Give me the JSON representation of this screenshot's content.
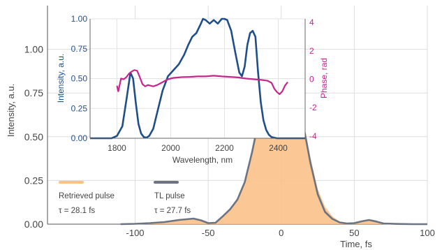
{
  "chart_data": [
    {
      "type": "area",
      "role": "main",
      "xlabel": "Time, fs",
      "ylabel": "Intensity, a.u.",
      "xlim": [
        -160,
        100
      ],
      "ylim": [
        0,
        1.25
      ],
      "xticks": [
        -100,
        -50,
        0,
        50,
        100
      ],
      "yticks": [
        0.0,
        0.25,
        0.5,
        0.75,
        1.0
      ],
      "ytick_labels": [
        "0.00",
        "0.25",
        "0.50",
        "0.75",
        "1.00"
      ],
      "grid": true,
      "legend_position": "bottom-left",
      "colors": {
        "retrieved": "#fbc188",
        "tl": "#6d7481",
        "axis": "#555555",
        "grid": "#dddddd"
      },
      "series": [
        {
          "name": "Retrieved pulse",
          "annotation": "τ = 28.1 fs",
          "style": "filled",
          "x": [
            -110,
            -100,
            -90,
            -80,
            -70,
            -60,
            -55,
            -50,
            -45,
            -40,
            -35,
            -30,
            -25,
            -20,
            -15,
            -10,
            -5,
            0,
            5,
            10,
            15,
            20,
            25,
            30,
            35,
            40,
            45,
            50,
            55,
            60,
            65,
            70,
            80,
            90,
            100
          ],
          "y": [
            0.0,
            0.003,
            0.008,
            0.015,
            0.028,
            0.035,
            0.025,
            0.008,
            0.01,
            0.05,
            0.09,
            0.15,
            0.25,
            0.42,
            0.62,
            0.82,
            0.96,
            1.0,
            0.96,
            0.82,
            0.6,
            0.38,
            0.2,
            0.1,
            0.045,
            0.015,
            0.005,
            0.006,
            0.018,
            0.028,
            0.018,
            0.006,
            0.002,
            0.0,
            0.0
          ]
        },
        {
          "name": "TL pulse",
          "annotation": "τ = 27.7 fs",
          "style": "line",
          "x": [
            -110,
            -100,
            -90,
            -80,
            -70,
            -60,
            -55,
            -50,
            -45,
            -40,
            -35,
            -30,
            -25,
            -20,
            -15,
            -10,
            -5,
            0,
            5,
            10,
            15,
            20,
            25,
            30,
            35,
            40,
            45,
            50,
            55,
            60,
            65,
            70,
            80,
            90,
            100
          ],
          "y": [
            0.0,
            0.002,
            0.006,
            0.012,
            0.024,
            0.032,
            0.022,
            0.006,
            0.008,
            0.045,
            0.085,
            0.14,
            0.24,
            0.41,
            0.61,
            0.81,
            0.96,
            1.0,
            0.955,
            0.8,
            0.57,
            0.35,
            0.17,
            0.07,
            0.03,
            0.01,
            0.004,
            0.006,
            0.016,
            0.024,
            0.015,
            0.004,
            0.001,
            0.0,
            0.0
          ]
        }
      ]
    },
    {
      "type": "line",
      "role": "inset",
      "xlabel": "Wavelength, nm",
      "ylabel": "Intensity, a.u.",
      "y2label": "Phase, rad",
      "xlim": [
        1700,
        2500
      ],
      "ylim": [
        0,
        1.0
      ],
      "y2lim": [
        -4.2,
        4.2
      ],
      "xticks": [
        1800,
        2000,
        2200,
        2400
      ],
      "yticks": [
        0.0,
        0.25,
        0.5,
        0.75,
        1.0
      ],
      "ytick_labels": [
        "0.00",
        "0.25",
        "0.50",
        "0.75",
        "1.00"
      ],
      "y2ticks": [
        -4,
        -2,
        0,
        2,
        4
      ],
      "grid": true,
      "colors": {
        "intensity": "#1f4e89",
        "phase": "#c4268c"
      },
      "series": [
        {
          "name": "Intensity",
          "axis": "left",
          "x": [
            1700,
            1780,
            1800,
            1820,
            1835,
            1850,
            1860,
            1870,
            1880,
            1890,
            1900,
            1910,
            1920,
            1935,
            1950,
            1970,
            1990,
            2010,
            2030,
            2050,
            2065,
            2080,
            2095,
            2110,
            2120,
            2130,
            2145,
            2160,
            2175,
            2190,
            2200,
            2210,
            2225,
            2240,
            2255,
            2265,
            2275,
            2285,
            2295,
            2305,
            2315,
            2325,
            2335,
            2345,
            2355,
            2365,
            2375,
            2385,
            2395,
            2410,
            2430,
            2500
          ],
          "y": [
            0.0,
            0.0,
            0.02,
            0.1,
            0.32,
            0.55,
            0.5,
            0.3,
            0.12,
            0.04,
            0.01,
            0.005,
            0.02,
            0.08,
            0.22,
            0.4,
            0.52,
            0.57,
            0.62,
            0.7,
            0.78,
            0.85,
            0.88,
            0.95,
            1.0,
            0.99,
            0.96,
            0.99,
            0.96,
            1.0,
            1.0,
            0.99,
            0.9,
            0.72,
            0.55,
            0.52,
            0.6,
            0.78,
            0.88,
            0.9,
            0.85,
            0.55,
            0.3,
            0.15,
            0.07,
            0.03,
            0.01,
            0.005,
            0.0,
            0.0,
            0.0,
            0.0
          ]
        },
        {
          "name": "Phase",
          "axis": "right",
          "x": [
            1800,
            1805,
            1815,
            1825,
            1835,
            1845,
            1855,
            1865,
            1875,
            1885,
            1895,
            1905,
            1915,
            1925,
            1935,
            1950,
            1970,
            1990,
            2010,
            2040,
            2070,
            2100,
            2130,
            2160,
            2190,
            2220,
            2250,
            2280,
            2310,
            2340,
            2360,
            2375,
            2385,
            2395,
            2405,
            2415,
            2425,
            2435
          ],
          "y": [
            -0.5,
            -0.9,
            0.0,
            -0.05,
            0.1,
            0.35,
            0.5,
            0.6,
            0.55,
            0.1,
            -0.4,
            -0.55,
            -0.45,
            -0.5,
            -0.55,
            -0.45,
            -0.25,
            -0.05,
            0.05,
            0.1,
            0.12,
            0.15,
            0.15,
            0.2,
            0.15,
            0.12,
            0.08,
            0.0,
            -0.05,
            -0.1,
            -0.15,
            -0.3,
            -0.7,
            -0.95,
            -1.1,
            -0.9,
            -0.5,
            -0.25
          ]
        }
      ]
    }
  ]
}
